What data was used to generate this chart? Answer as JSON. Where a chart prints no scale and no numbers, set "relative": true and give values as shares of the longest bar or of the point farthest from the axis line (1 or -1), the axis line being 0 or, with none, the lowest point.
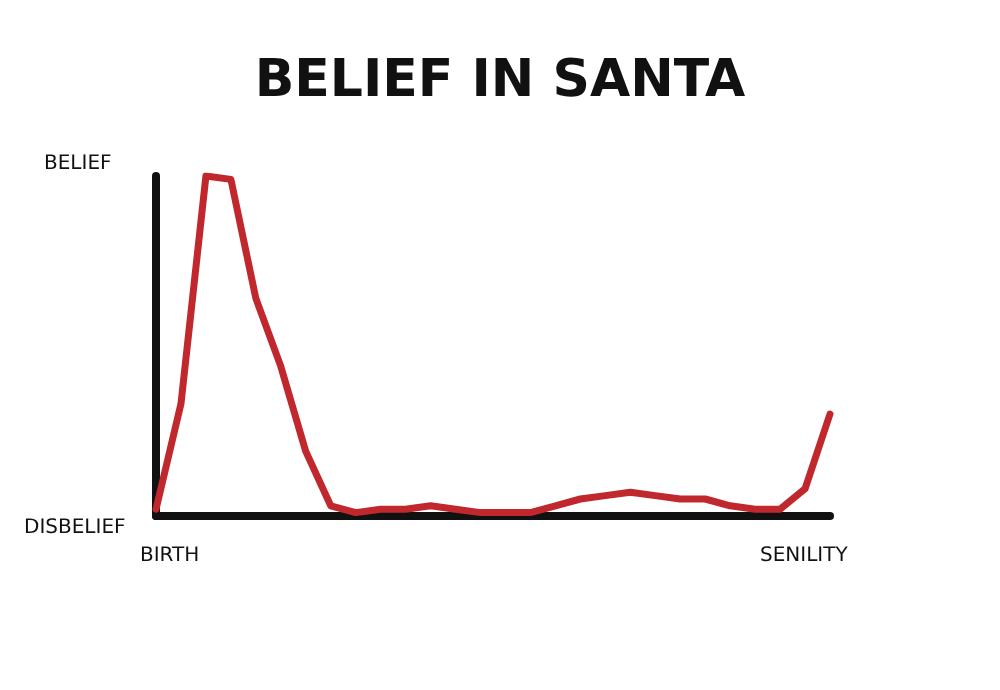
{
  "chart_data": {
    "type": "line",
    "title": "BELIEF IN SANTA",
    "relative": true,
    "categories": [
      null,
      null,
      null,
      null,
      null,
      null,
      null,
      null,
      null,
      null,
      null,
      null,
      null,
      null,
      null,
      null,
      null,
      null,
      null,
      null,
      null,
      null,
      null,
      null,
      null,
      null,
      null,
      null
    ],
    "series": [
      {
        "color": "#c0282e",
        "values": [
          0.02,
          0.33,
          1.0,
          0.99,
          0.64,
          0.44,
          0.19,
          0.03,
          0.01,
          0.02,
          0.02,
          0.03,
          0.02,
          0.01,
          0.01,
          0.01,
          0.03,
          0.05,
          0.06,
          0.07,
          0.06,
          0.05,
          0.05,
          0.03,
          0.02,
          0.02,
          0.08,
          0.3
        ]
      }
    ],
    "annotations": [
      "BELIEF",
      "DISBELIEF",
      "BIRTH",
      "SENILITY"
    ],
    "grid": false,
    "marker": "none",
    "line_style": "solid"
  }
}
